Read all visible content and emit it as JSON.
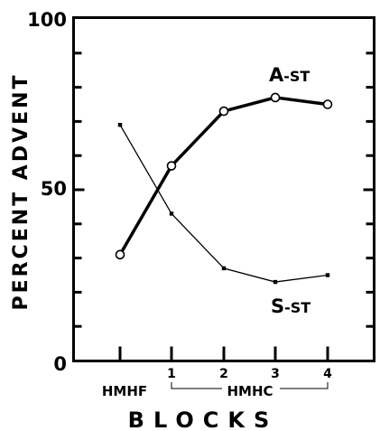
{
  "chart_data": {
    "type": "line",
    "ylabel": "PERCENT ADVENT",
    "xlabel": "BLOCKS",
    "ylim": [
      0,
      100
    ],
    "yticks": [
      0,
      50,
      100
    ],
    "y_tick_labels": [
      "0",
      "50",
      "100"
    ],
    "categories": [
      "HMHF",
      "1",
      "2",
      "3",
      "4"
    ],
    "group_labels": [
      {
        "text": "HMHF"
      },
      {
        "text": "HMHC"
      }
    ],
    "series": [
      {
        "name": "A-ST",
        "name_main": "A",
        "name_suffix": "-ST",
        "marker": "open-circle",
        "line": "thick",
        "values": [
          31,
          57,
          73,
          77,
          75
        ]
      },
      {
        "name": "S-ST",
        "name_main": "S",
        "name_suffix": "-ST",
        "marker": "small-square",
        "line": "thin",
        "values": [
          69,
          43,
          27,
          23,
          25
        ]
      }
    ],
    "grid": false
  }
}
